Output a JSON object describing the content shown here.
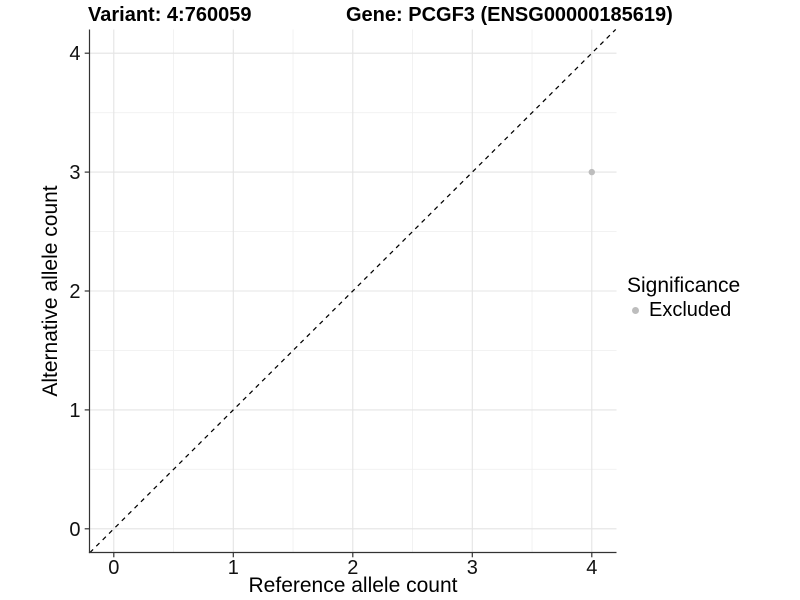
{
  "chart_data": {
    "type": "scatter",
    "titles": {
      "left": "Variant: 4:760059",
      "right": "Gene: PCGF3 (ENSG00000185619)"
    },
    "xlabel": "Reference allele count",
    "ylabel": "Alternative allele count",
    "xlim": [
      -0.2,
      4.2
    ],
    "ylim": [
      -0.2,
      4.2
    ],
    "x_ticks": [
      0,
      1,
      2,
      3,
      4
    ],
    "y_ticks": [
      0,
      1,
      2,
      3,
      4
    ],
    "x_minor_ticks": [
      0.5,
      1.5,
      2.5,
      3.5
    ],
    "y_minor_ticks": [
      0.5,
      1.5,
      2.5,
      3.5
    ],
    "grid": "major+minor",
    "series": [
      {
        "name": "Excluded",
        "color": "#bdbdbd",
        "points": [
          {
            "x": 4,
            "y": 3
          }
        ]
      }
    ],
    "identity_line": {
      "slope": 1,
      "intercept": 0,
      "style": "dashed",
      "color": "#000000"
    },
    "legend": {
      "title": "Significance",
      "position": "right",
      "entries": [
        {
          "label": "Excluded",
          "color": "#bdbdbd"
        }
      ]
    }
  },
  "colors": {
    "background": "#ffffff",
    "point": "#bdbdbd",
    "grid_major": "#e4e4e4",
    "grid_minor": "#f0f0f0",
    "axis_line": "#333333",
    "tick_text": "#111111",
    "title_text": "#000000"
  }
}
